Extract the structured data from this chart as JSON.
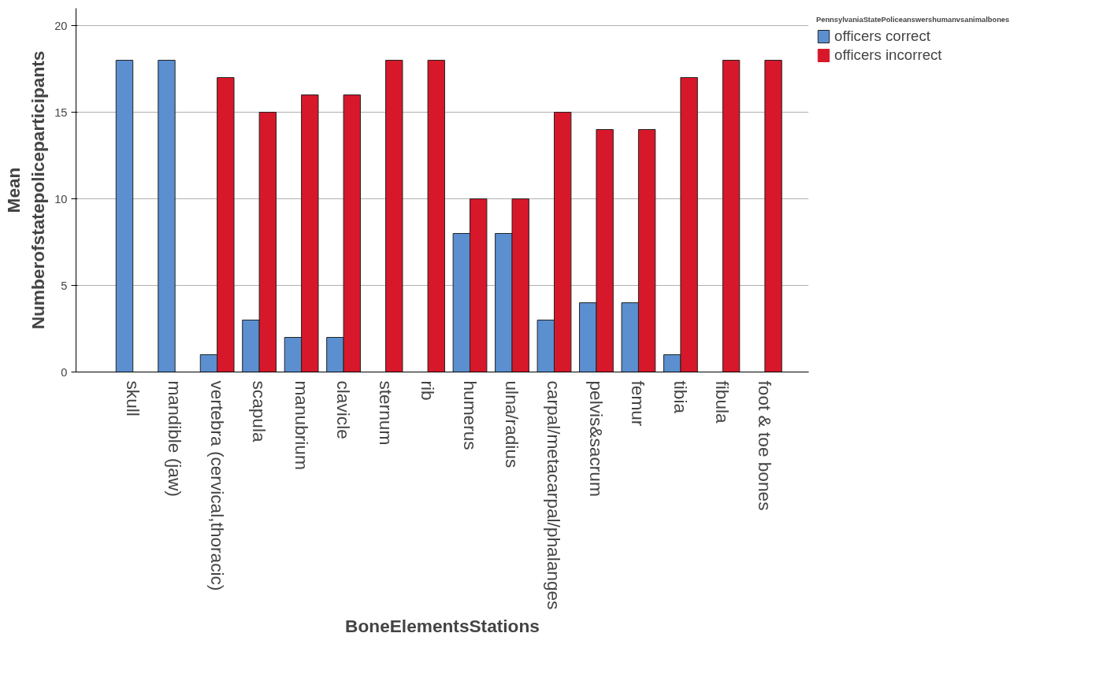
{
  "chart_data": {
    "type": "bar",
    "xlabel": "BoneElementsStations",
    "ylabel": "Mean\nNumberofstatepoliceparticipants",
    "legend_title": "PennsylvaniaStatePoliceanswershumanvsanimalbones",
    "categories": [
      "skull",
      "mandible (jaw)",
      "vertebra (cervical,thoracic)",
      "scapula",
      "manubrium",
      "clavicle",
      "sternum",
      "rib",
      "humerus",
      "ulna/radius",
      "carpal/metacarpal/phalanges",
      "pelvis&sacrum",
      "femur",
      "tibia",
      "fibula",
      "foot & toe bones"
    ],
    "series": [
      {
        "name": "officers correct",
        "color": "#5b8fd0",
        "values": [
          18,
          18,
          1,
          3,
          2,
          2,
          0,
          0,
          8,
          8,
          3,
          4,
          4,
          1,
          0,
          0
        ]
      },
      {
        "name": "officers incorrect",
        "color": "#d7182a",
        "values": [
          0,
          0,
          17,
          15,
          16,
          16,
          18,
          18,
          10,
          10,
          15,
          14,
          14,
          17,
          18,
          18
        ]
      }
    ],
    "ylim": [
      0,
      21
    ],
    "yticks": [
      0,
      5,
      10,
      15,
      20
    ],
    "grid": "y",
    "legend": "top right"
  }
}
